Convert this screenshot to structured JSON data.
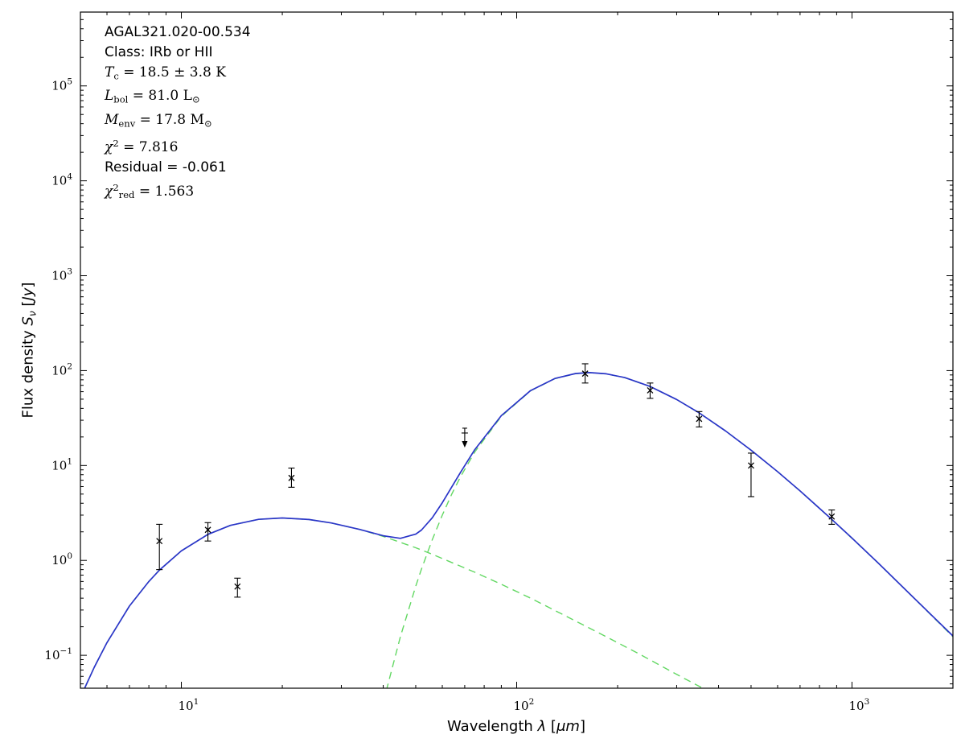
{
  "figure": {
    "background": "#ffffff",
    "frame_color": "#000000"
  },
  "fit_parameters": {
    "source_name": "AGAL321.020-00.534",
    "class": "IRb or HII",
    "T_c": "18.5 ± 3.8 K",
    "L_bol": "81.0 L☉",
    "M_env": "17.8 M☉",
    "chi2": 7.816,
    "residual": -0.061,
    "chi2_red": 1.563
  },
  "chart_data": {
    "type": "line",
    "title": "",
    "xlabel_text": "Wavelength λ [μm]",
    "ylabel_text": "Flux density S_ν [Jy]",
    "xlabel_runs": [
      {
        "t": "Wavelength "
      },
      {
        "t": "λ",
        "i": true
      },
      {
        "t": " ["
      },
      {
        "t": "μm",
        "i": true
      },
      {
        "t": "]"
      }
    ],
    "ylabel_runs": [
      {
        "t": "Flux density "
      },
      {
        "t": "S",
        "i": true
      },
      {
        "t": "ν",
        "sub": true,
        "i": true
      },
      {
        "t": " ["
      },
      {
        "t": "Jy",
        "i": true
      },
      {
        "t": "]"
      }
    ],
    "xscale": "log",
    "yscale": "log",
    "xlim": [
      5,
      2000
    ],
    "ylim": [
      0.045,
      600000
    ],
    "xtick_exponents": [
      1,
      2,
      3
    ],
    "ytick_exponents": [
      -1,
      0,
      1,
      2,
      3,
      4,
      5
    ],
    "grid": false,
    "legend": "none",
    "marker_color": "#000000",
    "annotation_lines": [
      {
        "mode": "text",
        "runs": [
          {
            "t": "AGAL321.020-00.534"
          }
        ]
      },
      {
        "mode": "text",
        "runs": [
          {
            "t": "Class: IRb or HII"
          }
        ]
      },
      {
        "mode": "math",
        "runs": [
          {
            "t": "T",
            "i": true
          },
          {
            "t": "c",
            "sub": true
          },
          {
            "t": " = 18.5 ± 3.8 K"
          }
        ]
      },
      {
        "mode": "math",
        "runs": [
          {
            "t": "L",
            "i": true
          },
          {
            "t": "bol",
            "sub": true
          },
          {
            "t": " = 81.0 L"
          },
          {
            "t": "⊙",
            "sub": true
          }
        ]
      },
      {
        "mode": "math",
        "runs": [
          {
            "t": "M",
            "i": true
          },
          {
            "t": "env",
            "sub": true
          },
          {
            "t": " = 17.8 M"
          },
          {
            "t": "⊙",
            "sub": true
          }
        ]
      },
      {
        "mode": "math",
        "runs": [
          {
            "t": "χ",
            "i": true
          },
          {
            "t": "2",
            "sup": true
          },
          {
            "t": " = 7.816"
          }
        ]
      },
      {
        "mode": "text",
        "runs": [
          {
            "t": "Residual = -0.061"
          }
        ]
      },
      {
        "mode": "math",
        "runs": [
          {
            "t": "χ",
            "i": true
          },
          {
            "t": "2",
            "sup": true
          },
          {
            "t": "red",
            "sub": true
          },
          {
            "t": " = 1.563"
          }
        ]
      }
    ],
    "series": [
      {
        "name": "warm_component",
        "color": "#63d863",
        "style": "dashed",
        "points": [
          [
            5,
            0.036
          ],
          [
            5.5,
            0.075
          ],
          [
            6,
            0.136
          ],
          [
            7,
            0.33
          ],
          [
            8,
            0.6
          ],
          [
            8.6,
            0.79
          ],
          [
            10,
            1.26
          ],
          [
            12,
            1.88
          ],
          [
            14,
            2.34
          ],
          [
            17,
            2.71
          ],
          [
            20,
            2.8
          ],
          [
            24,
            2.7
          ],
          [
            28,
            2.48
          ],
          [
            34,
            2.12
          ],
          [
            40,
            1.79
          ],
          [
            45,
            1.55
          ],
          [
            50,
            1.36
          ],
          [
            56,
            1.16
          ],
          [
            64,
            0.95
          ],
          [
            75,
            0.75
          ],
          [
            90,
            0.56
          ],
          [
            110,
            0.4
          ],
          [
            140,
            0.26
          ],
          [
            180,
            0.165
          ],
          [
            230,
            0.105
          ],
          [
            300,
            0.063
          ],
          [
            360,
            0.0447
          ]
        ]
      },
      {
        "name": "cold_component",
        "color": "#63d863",
        "style": "dashed",
        "points": [
          [
            40,
            0.032
          ],
          [
            45,
            0.157
          ],
          [
            50,
            0.535
          ],
          [
            52,
            0.81
          ],
          [
            56,
            1.65
          ],
          [
            60,
            3.0
          ],
          [
            64,
            4.98
          ],
          [
            68,
            7.62
          ],
          [
            75,
            13.9
          ],
          [
            90,
            33.0
          ],
          [
            110,
            61.3
          ],
          [
            130,
            82.3
          ],
          [
            150,
            92.9
          ],
          [
            165,
            95.0
          ],
          [
            185,
            92.3
          ],
          [
            210,
            84.2
          ],
          [
            250,
            68.0
          ],
          [
            300,
            49.6
          ],
          [
            350,
            35.8
          ],
          [
            420,
            23.1
          ],
          [
            500,
            14.5
          ],
          [
            600,
            8.6
          ],
          [
            700,
            5.4
          ],
          [
            870,
            2.7
          ],
          [
            1000,
            1.71
          ],
          [
            1200,
            0.93
          ],
          [
            1500,
            0.43
          ],
          [
            2000,
            0.157
          ]
        ]
      },
      {
        "name": "total_fit",
        "color": "#2a35c8",
        "style": "solid",
        "points": [
          [
            5,
            0.036
          ],
          [
            5.5,
            0.075
          ],
          [
            6,
            0.136
          ],
          [
            7,
            0.33
          ],
          [
            8,
            0.6
          ],
          [
            8.6,
            0.79
          ],
          [
            10,
            1.26
          ],
          [
            12,
            1.88
          ],
          [
            14,
            2.34
          ],
          [
            17,
            2.71
          ],
          [
            20,
            2.8
          ],
          [
            24,
            2.7
          ],
          [
            28,
            2.48
          ],
          [
            34,
            2.12
          ],
          [
            40,
            1.82
          ],
          [
            45,
            1.71
          ],
          [
            50,
            1.89
          ],
          [
            52,
            2.09
          ],
          [
            56,
            2.81
          ],
          [
            60,
            4.05
          ],
          [
            64,
            5.93
          ],
          [
            68,
            8.48
          ],
          [
            75,
            14.7
          ],
          [
            90,
            33.5
          ],
          [
            110,
            61.7
          ],
          [
            130,
            82.6
          ],
          [
            150,
            93.2
          ],
          [
            165,
            95.2
          ],
          [
            185,
            92.5
          ],
          [
            210,
            84.4
          ],
          [
            250,
            68.1
          ],
          [
            300,
            49.6
          ],
          [
            350,
            35.9
          ],
          [
            420,
            23.1
          ],
          [
            500,
            14.5
          ],
          [
            600,
            8.6
          ],
          [
            700,
            5.4
          ],
          [
            870,
            2.71
          ],
          [
            1000,
            1.72
          ],
          [
            1200,
            0.93
          ],
          [
            1500,
            0.43
          ],
          [
            2000,
            0.16
          ]
        ]
      }
    ],
    "data_points": [
      {
        "x": 8.6,
        "y": 1.6,
        "err_lo": 0.8,
        "err_hi": 0.8
      },
      {
        "x": 12,
        "y": 2.1,
        "err_lo": 0.5,
        "err_hi": 0.4
      },
      {
        "x": 14.7,
        "y": 0.53,
        "err_lo": 0.12,
        "err_hi": 0.12
      },
      {
        "x": 21.3,
        "y": 7.4,
        "err_lo": 1.5,
        "err_hi": 2.0
      },
      {
        "x": 70,
        "y": 22,
        "err_lo": 2,
        "err_hi": 2,
        "upper_limit": true
      },
      {
        "x": 160,
        "y": 93,
        "err_lo": 19,
        "err_hi": 25
      },
      {
        "x": 250,
        "y": 62,
        "err_lo": 11,
        "err_hi": 12
      },
      {
        "x": 350,
        "y": 31,
        "err_lo": 5.5,
        "err_hi": 6
      },
      {
        "x": 500,
        "y": 10,
        "err_lo": 5.3,
        "err_hi": 3.5
      },
      {
        "x": 870,
        "y": 2.9,
        "err_lo": 0.5,
        "err_hi": 0.5
      }
    ]
  }
}
